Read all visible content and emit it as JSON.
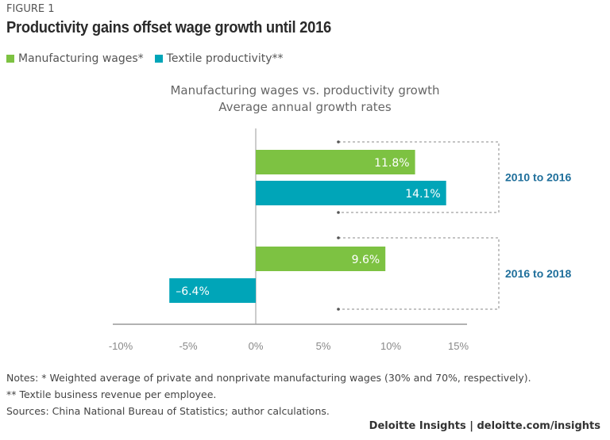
{
  "figure_label": "FIGURE 1",
  "title": "Productivity gains offset wage growth until 2016",
  "colors": {
    "green": "#7dc242",
    "teal": "#00a5b8",
    "group_label": "#1f6f9b"
  },
  "chart_data": {
    "type": "bar",
    "orientation": "horizontal",
    "title": "Manufacturing wages vs. productivity growth",
    "subtitle": "Average annual growth rates",
    "legend_placement": "top-left",
    "groups": [
      "2010 to 2016",
      "2016 to 2018"
    ],
    "series": [
      {
        "name": "Manufacturing wages*",
        "color": "#7dc242",
        "values": [
          11.8,
          9.6
        ],
        "labels": [
          "11.8%",
          "9.6%"
        ]
      },
      {
        "name": "Textile productivity**",
        "color": "#00a5b8",
        "values": [
          14.1,
          -6.4
        ],
        "labels": [
          "14.1%",
          "–6.4%"
        ]
      }
    ],
    "xlim": [
      -10,
      15
    ],
    "xticks": [
      -10,
      -5,
      0,
      5,
      10,
      15
    ],
    "xtick_labels": [
      "-10%",
      "-5%",
      "0%",
      "5%",
      "10%",
      "15%"
    ],
    "grid": false
  },
  "notes": [
    "Notes:  * Weighted average of private and nonprivate manufacturing wages (30% and 70%, respectively).",
    "** Textile business revenue per employee.",
    "Sources: China National Bureau of Statistics; author calculations."
  ],
  "credit": "Deloitte Insights | deloitte.com/insights"
}
